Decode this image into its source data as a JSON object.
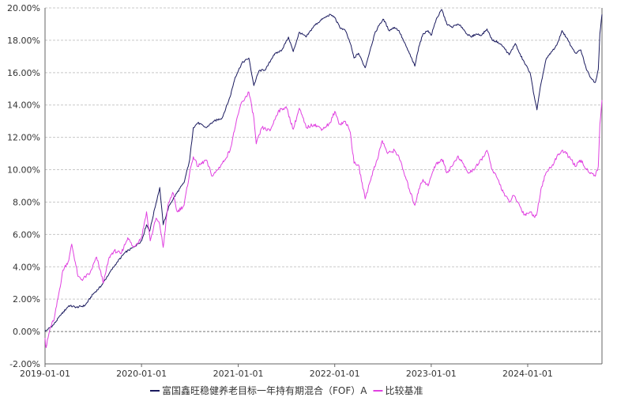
{
  "chart_data": {
    "type": "line",
    "title": "",
    "xlabel": "",
    "ylabel": "",
    "x_range": [
      "2019-01-01",
      "2024-10-08"
    ],
    "x_ticks": [
      "2019-01-01",
      "2020-01-01",
      "2021-01-01",
      "2022-01-01",
      "2023-01-01",
      "2024-01-01"
    ],
    "ylim": [
      -2.0,
      20.0
    ],
    "y_ticks": [
      -2.0,
      0.0,
      2.0,
      4.0,
      6.0,
      8.0,
      10.0,
      12.0,
      14.0,
      16.0,
      18.0,
      20.0
    ],
    "y_tick_format": "percent_2dp",
    "grid": "horizontal dashed",
    "zero_line": "dashed",
    "legend_position": "bottom-center",
    "series": [
      {
        "name": "富国鑫旺稳健养老目标一年持有期混合（FOF）A",
        "color": "#1a1a5e",
        "points": [
          [
            "2019-01-01",
            0.0
          ],
          [
            "2019-02-01",
            0.4
          ],
          [
            "2019-03-01",
            1.0
          ],
          [
            "2019-04-01",
            1.6
          ],
          [
            "2019-05-01",
            1.5
          ],
          [
            "2019-06-01",
            1.6
          ],
          [
            "2019-07-01",
            2.3
          ],
          [
            "2019-08-01",
            2.8
          ],
          [
            "2019-09-01",
            3.6
          ],
          [
            "2019-10-01",
            4.3
          ],
          [
            "2019-11-01",
            4.9
          ],
          [
            "2019-12-01",
            5.2
          ],
          [
            "2020-01-01",
            5.6
          ],
          [
            "2020-01-20",
            6.6
          ],
          [
            "2020-02-01",
            6.2
          ],
          [
            "2020-02-20",
            7.6
          ],
          [
            "2020-03-10",
            8.9
          ],
          [
            "2020-03-23",
            6.6
          ],
          [
            "2020-04-15",
            7.8
          ],
          [
            "2020-05-15",
            8.6
          ],
          [
            "2020-06-10",
            9.2
          ],
          [
            "2020-07-01",
            10.6
          ],
          [
            "2020-07-15",
            12.6
          ],
          [
            "2020-08-01",
            12.9
          ],
          [
            "2020-09-01",
            12.6
          ],
          [
            "2020-10-01",
            13.0
          ],
          [
            "2020-11-01",
            13.2
          ],
          [
            "2020-12-01",
            14.5
          ],
          [
            "2020-12-20",
            15.7
          ],
          [
            "2021-01-15",
            16.6
          ],
          [
            "2021-02-10",
            16.9
          ],
          [
            "2021-03-01",
            15.2
          ],
          [
            "2021-03-20",
            16.1
          ],
          [
            "2021-04-15",
            16.2
          ],
          [
            "2021-05-15",
            17.1
          ],
          [
            "2021-06-15",
            17.4
          ],
          [
            "2021-07-10",
            18.2
          ],
          [
            "2021-07-28",
            17.3
          ],
          [
            "2021-08-20",
            18.5
          ],
          [
            "2021-09-15",
            18.2
          ],
          [
            "2021-10-15",
            18.9
          ],
          [
            "2021-11-15",
            19.3
          ],
          [
            "2021-12-15",
            19.6
          ],
          [
            "2022-01-01",
            19.4
          ],
          [
            "2022-01-20",
            18.8
          ],
          [
            "2022-02-10",
            18.6
          ],
          [
            "2022-03-01",
            17.8
          ],
          [
            "2022-03-15",
            16.9
          ],
          [
            "2022-04-01",
            17.2
          ],
          [
            "2022-04-26",
            16.3
          ],
          [
            "2022-05-15",
            17.4
          ],
          [
            "2022-06-01",
            18.4
          ],
          [
            "2022-06-20",
            19.0
          ],
          [
            "2022-07-05",
            19.3
          ],
          [
            "2022-07-25",
            18.6
          ],
          [
            "2022-08-15",
            18.8
          ],
          [
            "2022-09-01",
            18.6
          ],
          [
            "2022-09-20",
            17.9
          ],
          [
            "2022-10-10",
            17.2
          ],
          [
            "2022-10-31",
            16.4
          ],
          [
            "2022-11-15",
            17.6
          ],
          [
            "2022-12-01",
            18.4
          ],
          [
            "2022-12-20",
            18.6
          ],
          [
            "2023-01-01",
            18.3
          ],
          [
            "2023-01-20",
            19.3
          ],
          [
            "2023-02-10",
            19.9
          ],
          [
            "2023-03-01",
            19.0
          ],
          [
            "2023-03-20",
            18.8
          ],
          [
            "2023-04-10",
            19.0
          ],
          [
            "2023-04-28",
            18.8
          ],
          [
            "2023-05-15",
            18.4
          ],
          [
            "2023-06-01",
            18.2
          ],
          [
            "2023-06-20",
            18.4
          ],
          [
            "2023-07-10",
            18.3
          ],
          [
            "2023-07-31",
            18.7
          ],
          [
            "2023-08-20",
            18.0
          ],
          [
            "2023-09-10",
            17.9
          ],
          [
            "2023-10-01",
            17.6
          ],
          [
            "2023-10-23",
            17.1
          ],
          [
            "2023-11-15",
            17.8
          ],
          [
            "2023-12-01",
            17.2
          ],
          [
            "2023-12-20",
            16.6
          ],
          [
            "2024-01-10",
            16.0
          ],
          [
            "2024-01-25",
            14.6
          ],
          [
            "2024-02-05",
            13.7
          ],
          [
            "2024-02-20",
            15.3
          ],
          [
            "2024-03-10",
            16.8
          ],
          [
            "2024-04-01",
            17.3
          ],
          [
            "2024-04-20",
            17.7
          ],
          [
            "2024-05-10",
            18.6
          ],
          [
            "2024-05-25",
            18.2
          ],
          [
            "2024-06-15",
            17.6
          ],
          [
            "2024-07-01",
            17.2
          ],
          [
            "2024-07-20",
            17.4
          ],
          [
            "2024-08-10",
            16.2
          ],
          [
            "2024-08-30",
            15.6
          ],
          [
            "2024-09-13",
            15.4
          ],
          [
            "2024-09-24",
            16.2
          ],
          [
            "2024-09-30",
            18.4
          ],
          [
            "2024-10-08",
            19.6
          ]
        ]
      },
      {
        "name": "比较基准",
        "color": "#e040e0",
        "points": [
          [
            "2019-01-01",
            -0.4
          ],
          [
            "2019-01-05",
            -1.0
          ],
          [
            "2019-01-20",
            0.2
          ],
          [
            "2019-02-05",
            0.8
          ],
          [
            "2019-02-25",
            2.6
          ],
          [
            "2019-03-10",
            3.8
          ],
          [
            "2019-04-01",
            4.4
          ],
          [
            "2019-04-12",
            5.4
          ],
          [
            "2019-05-06",
            3.4
          ],
          [
            "2019-05-20",
            3.2
          ],
          [
            "2019-06-20",
            3.6
          ],
          [
            "2019-07-15",
            4.6
          ],
          [
            "2019-08-10",
            3.0
          ],
          [
            "2019-09-01",
            4.6
          ],
          [
            "2019-09-20",
            5.0
          ],
          [
            "2019-10-15",
            4.8
          ],
          [
            "2019-11-10",
            5.8
          ],
          [
            "2019-12-01",
            5.2
          ],
          [
            "2020-01-01",
            5.8
          ],
          [
            "2020-01-20",
            7.4
          ],
          [
            "2020-02-03",
            5.6
          ],
          [
            "2020-02-25",
            7.0
          ],
          [
            "2020-03-10",
            6.6
          ],
          [
            "2020-03-23",
            5.2
          ],
          [
            "2020-04-10",
            7.8
          ],
          [
            "2020-04-28",
            8.6
          ],
          [
            "2020-05-15",
            7.4
          ],
          [
            "2020-06-10",
            7.8
          ],
          [
            "2020-07-01",
            9.8
          ],
          [
            "2020-07-15",
            10.8
          ],
          [
            "2020-08-01",
            10.2
          ],
          [
            "2020-09-01",
            10.6
          ],
          [
            "2020-09-25",
            9.6
          ],
          [
            "2020-10-15",
            10.0
          ],
          [
            "2020-11-10",
            10.6
          ],
          [
            "2020-12-01",
            11.2
          ],
          [
            "2020-12-20",
            12.6
          ],
          [
            "2021-01-10",
            14.0
          ],
          [
            "2021-02-10",
            14.8
          ],
          [
            "2021-03-01",
            13.2
          ],
          [
            "2021-03-10",
            11.6
          ],
          [
            "2021-04-01",
            12.6
          ],
          [
            "2021-05-01",
            12.4
          ],
          [
            "2021-06-01",
            13.6
          ],
          [
            "2021-07-01",
            13.9
          ],
          [
            "2021-07-28",
            12.5
          ],
          [
            "2021-08-20",
            13.8
          ],
          [
            "2021-09-15",
            12.6
          ],
          [
            "2021-10-15",
            12.8
          ],
          [
            "2021-11-15",
            12.5
          ],
          [
            "2021-12-15",
            12.9
          ],
          [
            "2022-01-01",
            13.6
          ],
          [
            "2022-01-20",
            12.8
          ],
          [
            "2022-02-10",
            13.0
          ],
          [
            "2022-03-01",
            12.3
          ],
          [
            "2022-03-15",
            10.4
          ],
          [
            "2022-04-01",
            10.3
          ],
          [
            "2022-04-26",
            8.2
          ],
          [
            "2022-05-20",
            9.6
          ],
          [
            "2022-06-10",
            10.6
          ],
          [
            "2022-06-30",
            11.8
          ],
          [
            "2022-07-20",
            11.0
          ],
          [
            "2022-08-15",
            11.2
          ],
          [
            "2022-09-01",
            10.8
          ],
          [
            "2022-09-20",
            9.8
          ],
          [
            "2022-10-10",
            8.8
          ],
          [
            "2022-10-31",
            7.8
          ],
          [
            "2022-11-15",
            8.8
          ],
          [
            "2022-12-01",
            9.4
          ],
          [
            "2022-12-20",
            9.0
          ],
          [
            "2023-01-05",
            9.8
          ],
          [
            "2023-01-20",
            10.4
          ],
          [
            "2023-02-15",
            10.6
          ],
          [
            "2023-03-01",
            9.8
          ],
          [
            "2023-03-20",
            10.2
          ],
          [
            "2023-04-10",
            10.8
          ],
          [
            "2023-05-01",
            10.4
          ],
          [
            "2023-05-20",
            9.8
          ],
          [
            "2023-06-10",
            10.0
          ],
          [
            "2023-07-01",
            10.4
          ],
          [
            "2023-07-31",
            11.2
          ],
          [
            "2023-08-20",
            10.0
          ],
          [
            "2023-09-10",
            9.4
          ],
          [
            "2023-10-01",
            8.6
          ],
          [
            "2023-10-23",
            8.0
          ],
          [
            "2023-11-10",
            8.4
          ],
          [
            "2023-12-01",
            7.8
          ],
          [
            "2023-12-20",
            7.2
          ],
          [
            "2024-01-10",
            7.4
          ],
          [
            "2024-01-25",
            7.1
          ],
          [
            "2024-02-05",
            7.3
          ],
          [
            "2024-02-20",
            8.8
          ],
          [
            "2024-03-10",
            9.8
          ],
          [
            "2024-04-01",
            10.2
          ],
          [
            "2024-04-20",
            10.8
          ],
          [
            "2024-05-10",
            11.2
          ],
          [
            "2024-05-25",
            11.0
          ],
          [
            "2024-06-15",
            10.6
          ],
          [
            "2024-07-01",
            10.2
          ],
          [
            "2024-07-20",
            10.6
          ],
          [
            "2024-08-10",
            10.0
          ],
          [
            "2024-08-30",
            9.8
          ],
          [
            "2024-09-13",
            9.6
          ],
          [
            "2024-09-24",
            10.2
          ],
          [
            "2024-09-30",
            12.8
          ],
          [
            "2024-10-08",
            14.3
          ]
        ]
      }
    ]
  }
}
